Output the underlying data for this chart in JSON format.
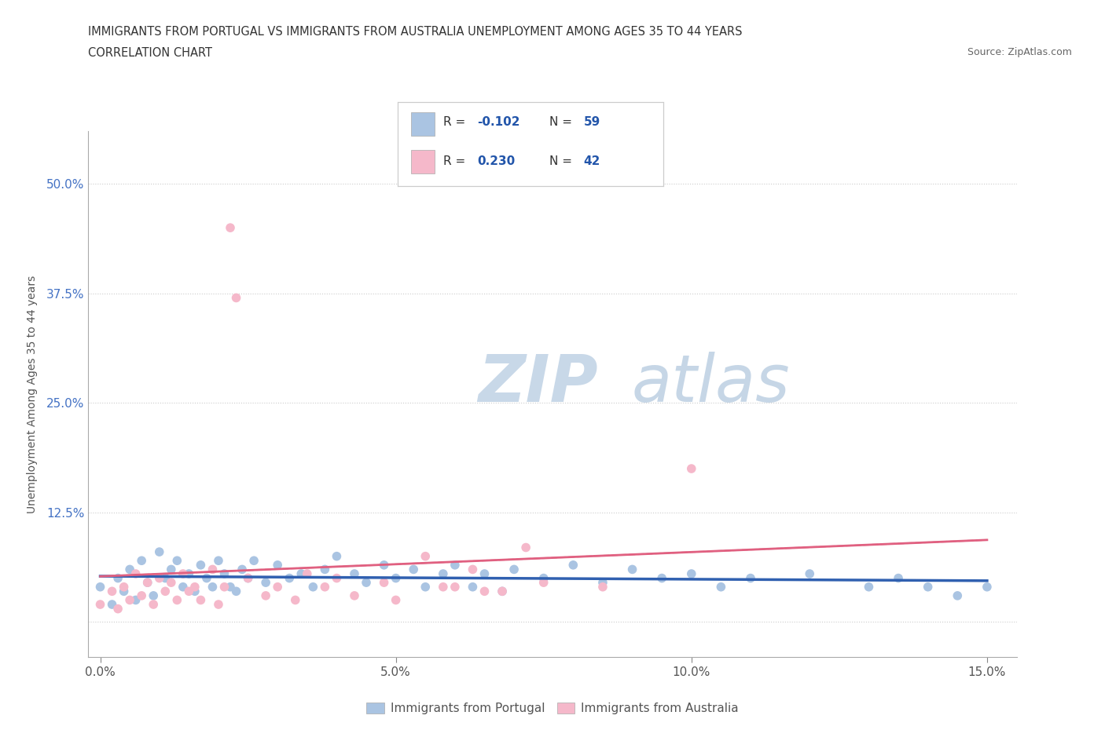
{
  "title_line1": "IMMIGRANTS FROM PORTUGAL VS IMMIGRANTS FROM AUSTRALIA UNEMPLOYMENT AMONG AGES 35 TO 44 YEARS",
  "title_line2": "CORRELATION CHART",
  "source": "Source: ZipAtlas.com",
  "ylabel": "Unemployment Among Ages 35 to 44 years",
  "xlim": [
    -0.002,
    0.155
  ],
  "ylim": [
    -0.04,
    0.56
  ],
  "xticks": [
    0.0,
    0.05,
    0.1,
    0.15
  ],
  "xtick_labels": [
    "0.0%",
    "5.0%",
    "10.0%",
    "15.0%"
  ],
  "yticks": [
    0.0,
    0.125,
    0.25,
    0.375,
    0.5
  ],
  "ytick_labels": [
    "",
    "12.5%",
    "25.0%",
    "37.5%",
    "50.0%"
  ],
  "portugal_R": -0.102,
  "portugal_N": 59,
  "australia_R": 0.23,
  "australia_N": 42,
  "portugal_color": "#aac4e2",
  "australia_color": "#f5b8ca",
  "portugal_line_color": "#3060b0",
  "australia_line_color": "#e06080",
  "portugal_line_style": "solid",
  "australia_line_style": "dashed",
  "watermark_zip": "ZIP",
  "watermark_atlas": "atlas",
  "legend_label_portugal": "Immigrants from Portugal",
  "legend_label_australia": "Immigrants from Australia",
  "portugal_scatter_x": [
    0.0,
    0.002,
    0.003,
    0.004,
    0.005,
    0.006,
    0.007,
    0.008,
    0.009,
    0.01,
    0.011,
    0.012,
    0.013,
    0.014,
    0.015,
    0.016,
    0.017,
    0.018,
    0.019,
    0.02,
    0.021,
    0.022,
    0.023,
    0.024,
    0.025,
    0.026,
    0.028,
    0.03,
    0.032,
    0.034,
    0.036,
    0.038,
    0.04,
    0.043,
    0.045,
    0.048,
    0.05,
    0.053,
    0.055,
    0.058,
    0.06,
    0.063,
    0.065,
    0.068,
    0.07,
    0.075,
    0.08,
    0.085,
    0.09,
    0.095,
    0.1,
    0.105,
    0.11,
    0.12,
    0.13,
    0.135,
    0.14,
    0.145,
    0.15
  ],
  "portugal_scatter_y": [
    0.04,
    0.02,
    0.05,
    0.035,
    0.06,
    0.025,
    0.07,
    0.045,
    0.03,
    0.08,
    0.05,
    0.06,
    0.07,
    0.04,
    0.055,
    0.035,
    0.065,
    0.05,
    0.04,
    0.07,
    0.055,
    0.04,
    0.035,
    0.06,
    0.05,
    0.07,
    0.045,
    0.065,
    0.05,
    0.055,
    0.04,
    0.06,
    0.075,
    0.055,
    0.045,
    0.065,
    0.05,
    0.06,
    0.04,
    0.055,
    0.065,
    0.04,
    0.055,
    0.035,
    0.06,
    0.05,
    0.065,
    0.045,
    0.06,
    0.05,
    0.055,
    0.04,
    0.05,
    0.055,
    0.04,
    0.05,
    0.04,
    0.03,
    0.04
  ],
  "australia_scatter_x": [
    0.0,
    0.002,
    0.003,
    0.004,
    0.005,
    0.006,
    0.007,
    0.008,
    0.009,
    0.01,
    0.011,
    0.012,
    0.013,
    0.014,
    0.015,
    0.016,
    0.017,
    0.019,
    0.02,
    0.021,
    0.022,
    0.023,
    0.025,
    0.028,
    0.03,
    0.033,
    0.035,
    0.038,
    0.04,
    0.043,
    0.048,
    0.05,
    0.055,
    0.058,
    0.06,
    0.063,
    0.065,
    0.068,
    0.072,
    0.075,
    0.085,
    0.1
  ],
  "australia_scatter_y": [
    0.02,
    0.035,
    0.015,
    0.04,
    0.025,
    0.055,
    0.03,
    0.045,
    0.02,
    0.05,
    0.035,
    0.045,
    0.025,
    0.055,
    0.035,
    0.04,
    0.025,
    0.06,
    0.02,
    0.04,
    0.45,
    0.37,
    0.05,
    0.03,
    0.04,
    0.025,
    0.055,
    0.04,
    0.05,
    0.03,
    0.045,
    0.025,
    0.075,
    0.04,
    0.04,
    0.06,
    0.035,
    0.035,
    0.085,
    0.045,
    0.04,
    0.175
  ]
}
